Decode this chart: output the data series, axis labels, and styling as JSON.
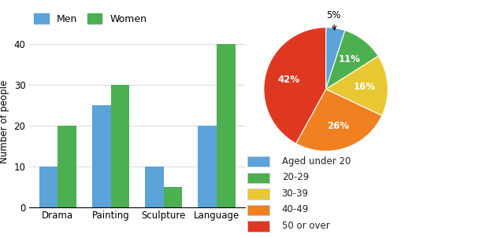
{
  "bar_categories": [
    "Drama",
    "Painting",
    "Sculpture",
    "Language"
  ],
  "men_values": [
    10,
    25,
    10,
    20
  ],
  "women_values": [
    20,
    30,
    5,
    40
  ],
  "men_color": "#5BA3D9",
  "women_color": "#4CAF50",
  "bar_ylabel": "Number of people",
  "bar_ylim": [
    0,
    42
  ],
  "bar_yticks": [
    0,
    10,
    20,
    30,
    40
  ],
  "bar_legend_labels": [
    "Men",
    "Women"
  ],
  "pie_values": [
    5,
    11,
    16,
    26,
    42
  ],
  "pie_labels_inside": [
    "",
    "11%",
    "16%",
    "26%",
    "42%"
  ],
  "pie_label_outside": "5%",
  "pie_colors": [
    "#5BA3D9",
    "#4CAF50",
    "#E8C832",
    "#F08020",
    "#E03820"
  ],
  "pie_legend_labels": [
    "Aged under 20",
    "20-29",
    "30-39",
    "40-49",
    "50 or over"
  ],
  "bg_color": "#ffffff"
}
